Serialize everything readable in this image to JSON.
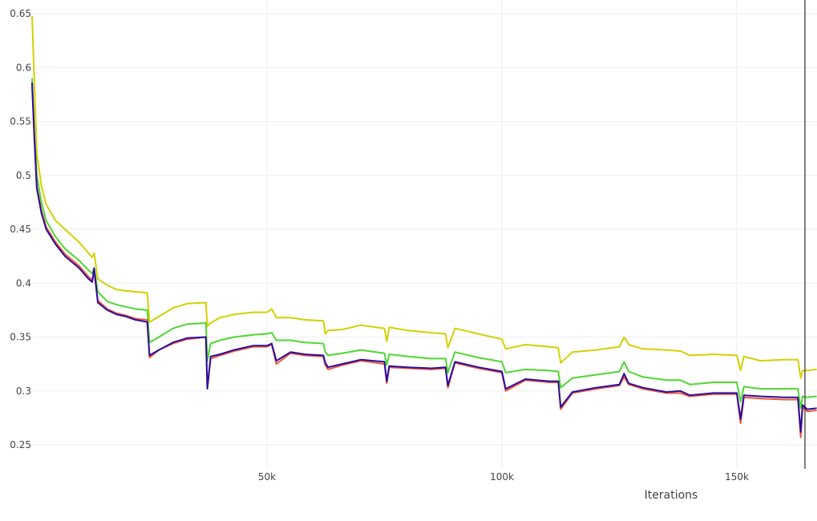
{
  "chart_data": {
    "type": "line",
    "title": "",
    "xlabel": "Iterations",
    "ylabel": "",
    "xlim": [
      0,
      167000
    ],
    "ylim": [
      0.235,
      0.65
    ],
    "grid": true,
    "legend": "none",
    "x_ticks": [
      {
        "value": 50000,
        "label": "50k"
      },
      {
        "value": 100000,
        "label": "100k"
      },
      {
        "value": 150000,
        "label": "150k"
      }
    ],
    "y_ticks": [
      {
        "value": 0.25,
        "label": "0.25"
      },
      {
        "value": 0.3,
        "label": "0.3"
      },
      {
        "value": 0.35,
        "label": "0.35"
      },
      {
        "value": 0.4,
        "label": "0.4"
      },
      {
        "value": 0.45,
        "label": "0.45"
      },
      {
        "value": 0.5,
        "label": "0.5"
      },
      {
        "value": 0.55,
        "label": "0.55"
      },
      {
        "value": 0.6,
        "label": "0.6"
      },
      {
        "value": 0.65,
        "label": "0.65"
      }
    ],
    "vertical_marker_x": 164500,
    "series": [
      {
        "color": "#d4d000",
        "x": [
          0,
          500,
          1000,
          2000,
          3000,
          5000,
          7000,
          10000,
          12000,
          12800,
          13200,
          14000,
          16000,
          18000,
          20000,
          22000,
          24500,
          25000,
          27000,
          30000,
          33000,
          37000,
          37300,
          38000,
          40000,
          43000,
          47000,
          50000,
          51000,
          52000,
          55000,
          58000,
          62000,
          62400,
          63000,
          66000,
          70000,
          75000,
          75500,
          76000,
          80000,
          85000,
          88000,
          88500,
          90000,
          95000,
          100000,
          100800,
          105000,
          110000,
          112000,
          112500,
          115000,
          120000,
          125000,
          126000,
          127000,
          130000,
          135000,
          138000,
          140000,
          145000,
          150000,
          150800,
          151500,
          155000,
          160000,
          163000,
          163600,
          164000,
          165000,
          167000
        ],
        "y": [
          0.648,
          0.585,
          0.52,
          0.49,
          0.473,
          0.458,
          0.45,
          0.438,
          0.428,
          0.424,
          0.428,
          0.404,
          0.398,
          0.394,
          0.393,
          0.392,
          0.391,
          0.364,
          0.369,
          0.377,
          0.381,
          0.382,
          0.36,
          0.363,
          0.368,
          0.371,
          0.373,
          0.373,
          0.376,
          0.368,
          0.368,
          0.366,
          0.365,
          0.353,
          0.356,
          0.357,
          0.361,
          0.358,
          0.346,
          0.359,
          0.356,
          0.354,
          0.353,
          0.34,
          0.358,
          0.353,
          0.348,
          0.339,
          0.343,
          0.341,
          0.34,
          0.326,
          0.336,
          0.338,
          0.341,
          0.35,
          0.343,
          0.339,
          0.338,
          0.337,
          0.333,
          0.334,
          0.333,
          0.319,
          0.332,
          0.328,
          0.329,
          0.329,
          0.312,
          0.319,
          0.319,
          0.32
        ]
      },
      {
        "color": "#4ed832",
        "x": [
          0,
          500,
          1000,
          2000,
          3000,
          5000,
          7000,
          10000,
          12000,
          12800,
          13200,
          14000,
          16000,
          18000,
          20000,
          22000,
          24500,
          25000,
          27000,
          30000,
          33000,
          37000,
          37300,
          38000,
          40000,
          43000,
          47000,
          50000,
          51000,
          52000,
          55000,
          58000,
          62000,
          62400,
          63000,
          66000,
          70000,
          75000,
          75500,
          76000,
          80000,
          85000,
          88000,
          88500,
          90000,
          95000,
          100000,
          100800,
          105000,
          110000,
          112000,
          112500,
          115000,
          120000,
          125000,
          126000,
          127000,
          130000,
          135000,
          138000,
          140000,
          145000,
          150000,
          150800,
          151500,
          155000,
          160000,
          163000,
          163600,
          164000,
          165000,
          167000
        ],
        "y": [
          0.59,
          0.54,
          0.5,
          0.475,
          0.458,
          0.443,
          0.432,
          0.421,
          0.412,
          0.409,
          0.414,
          0.392,
          0.383,
          0.38,
          0.378,
          0.376,
          0.375,
          0.345,
          0.35,
          0.358,
          0.362,
          0.363,
          0.328,
          0.344,
          0.347,
          0.35,
          0.352,
          0.353,
          0.354,
          0.347,
          0.347,
          0.345,
          0.344,
          0.336,
          0.333,
          0.335,
          0.338,
          0.335,
          0.324,
          0.334,
          0.332,
          0.33,
          0.33,
          0.317,
          0.336,
          0.331,
          0.327,
          0.317,
          0.32,
          0.319,
          0.318,
          0.303,
          0.312,
          0.315,
          0.318,
          0.327,
          0.318,
          0.313,
          0.31,
          0.31,
          0.306,
          0.308,
          0.308,
          0.29,
          0.304,
          0.302,
          0.302,
          0.302,
          0.284,
          0.295,
          0.294,
          0.295
        ]
      },
      {
        "color": "#ef553b",
        "x": [
          0,
          500,
          1000,
          2000,
          3000,
          5000,
          7000,
          10000,
          12000,
          12800,
          13200,
          14000,
          16000,
          18000,
          20000,
          22000,
          24500,
          25000,
          27000,
          30000,
          33000,
          37000,
          37300,
          38000,
          40000,
          43000,
          47000,
          50000,
          51000,
          52000,
          55000,
          58000,
          62000,
          62400,
          63000,
          66000,
          70000,
          75000,
          75500,
          76000,
          80000,
          85000,
          88000,
          88500,
          90000,
          95000,
          100000,
          100800,
          105000,
          110000,
          112000,
          112500,
          115000,
          120000,
          125000,
          126000,
          127000,
          130000,
          135000,
          138000,
          140000,
          145000,
          150000,
          150800,
          151500,
          155000,
          160000,
          163000,
          163600,
          164000,
          165000,
          167000
        ],
        "y": [
          0.583,
          0.535,
          0.49,
          0.467,
          0.452,
          0.438,
          0.427,
          0.416,
          0.406,
          0.403,
          0.41,
          0.384,
          0.376,
          0.372,
          0.37,
          0.367,
          0.366,
          0.331,
          0.338,
          0.344,
          0.348,
          0.35,
          0.303,
          0.33,
          0.333,
          0.337,
          0.341,
          0.341,
          0.343,
          0.325,
          0.335,
          0.333,
          0.332,
          0.324,
          0.32,
          0.324,
          0.328,
          0.325,
          0.307,
          0.322,
          0.321,
          0.32,
          0.321,
          0.303,
          0.326,
          0.321,
          0.317,
          0.3,
          0.31,
          0.308,
          0.308,
          0.283,
          0.298,
          0.302,
          0.305,
          0.313,
          0.306,
          0.302,
          0.298,
          0.298,
          0.295,
          0.297,
          0.297,
          0.27,
          0.294,
          0.293,
          0.292,
          0.292,
          0.257,
          0.285,
          0.281,
          0.282
        ]
      },
      {
        "color": "#2a0e9e",
        "x": [
          0,
          500,
          1000,
          2000,
          3000,
          5000,
          7000,
          10000,
          12000,
          12800,
          13200,
          14000,
          16000,
          18000,
          20000,
          22000,
          24500,
          25000,
          27000,
          30000,
          33000,
          37000,
          37300,
          38000,
          40000,
          43000,
          47000,
          50000,
          51000,
          52000,
          55000,
          58000,
          62000,
          62400,
          63000,
          66000,
          70000,
          75000,
          75500,
          76000,
          80000,
          85000,
          88000,
          88500,
          90000,
          95000,
          100000,
          100800,
          105000,
          110000,
          112000,
          112500,
          115000,
          120000,
          125000,
          126000,
          127000,
          130000,
          135000,
          138000,
          140000,
          145000,
          150000,
          150800,
          151500,
          155000,
          160000,
          163000,
          163600,
          164000,
          165000,
          167000
        ],
        "y": [
          0.586,
          0.533,
          0.488,
          0.465,
          0.45,
          0.436,
          0.425,
          0.414,
          0.404,
          0.401,
          0.414,
          0.382,
          0.375,
          0.371,
          0.369,
          0.366,
          0.364,
          0.333,
          0.338,
          0.345,
          0.349,
          0.35,
          0.302,
          0.332,
          0.334,
          0.338,
          0.342,
          0.342,
          0.344,
          0.328,
          0.336,
          0.334,
          0.333,
          0.326,
          0.322,
          0.325,
          0.329,
          0.327,
          0.309,
          0.323,
          0.322,
          0.321,
          0.322,
          0.305,
          0.327,
          0.322,
          0.318,
          0.302,
          0.311,
          0.309,
          0.309,
          0.285,
          0.299,
          0.303,
          0.306,
          0.316,
          0.307,
          0.303,
          0.299,
          0.3,
          0.296,
          0.298,
          0.298,
          0.274,
          0.296,
          0.295,
          0.294,
          0.294,
          0.262,
          0.287,
          0.283,
          0.284
        ]
      }
    ]
  }
}
